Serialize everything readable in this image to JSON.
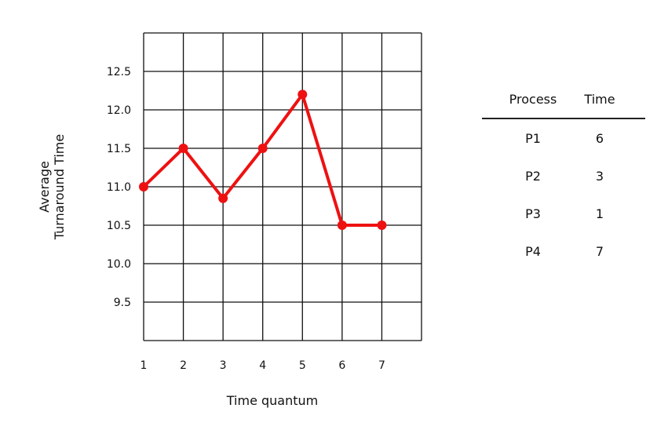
{
  "chart_data": {
    "type": "line",
    "title": "",
    "xlabel": "Time quantum",
    "ylabel": [
      "Average",
      "Turnaround Time"
    ],
    "x": [
      1,
      2,
      3,
      4,
      5,
      6,
      7
    ],
    "x_tick_labels": [
      "1",
      "2",
      "3",
      "4",
      "5",
      "6",
      "7"
    ],
    "y_tick_labels": [
      "9.5",
      "10.0",
      "10.5",
      "11.0",
      "11.5",
      "12.0",
      "12.5"
    ],
    "y_ticks": [
      9.5,
      10.0,
      10.5,
      11.0,
      11.5,
      12.0,
      12.5
    ],
    "xlim": [
      1,
      8
    ],
    "ylim": [
      9.0,
      13.0
    ],
    "grid": true,
    "series": [
      {
        "values": [
          11.0,
          11.5,
          10.85,
          11.5,
          12.2,
          10.5,
          10.5
        ],
        "color": "#ee1111"
      }
    ]
  },
  "table": {
    "headers": [
      "Process",
      "Time"
    ],
    "rows": [
      [
        "P1",
        "6"
      ],
      [
        "P2",
        "3"
      ],
      [
        "P3",
        "1"
      ],
      [
        "P4",
        "7"
      ]
    ]
  }
}
